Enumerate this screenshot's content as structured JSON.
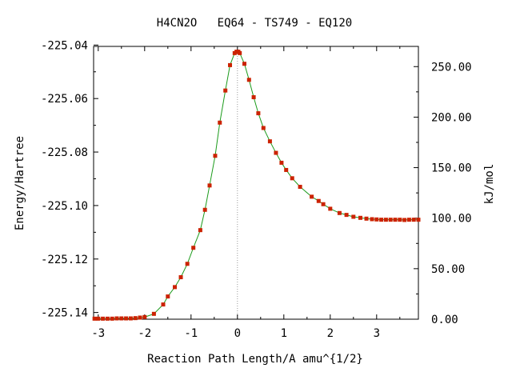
{
  "chart_data": {
    "type": "line",
    "title": "H4CN2O   EQ64 - TS749 - EQ120",
    "xlabel": "Reaction Path Length/A amu^{1/2}",
    "ylabel": "Energy/Hartree",
    "ylabel_right": "kJ/mol",
    "xlim": [
      -3.1,
      3.9
    ],
    "ylim": [
      -225.1425,
      -225.0405
    ],
    "ylim_right": [
      0,
      270
    ],
    "x_ticks": [
      -3,
      -2,
      -1,
      0,
      1,
      2,
      3
    ],
    "x_tick_labels": [
      "-3",
      "-2",
      "-1",
      "0",
      "1",
      "2",
      "3"
    ],
    "y_ticks": [
      -225.14,
      -225.12,
      -225.1,
      -225.08,
      -225.06,
      -225.04
    ],
    "y_tick_labels": [
      "-225.14",
      "-225.12",
      "-225.10",
      "-225.08",
      "-225.06",
      "-225.04"
    ],
    "y_right_ticks": [
      0,
      50,
      100,
      150,
      200,
      250
    ],
    "y_right_tick_labels": [
      "0.00",
      "50.00",
      "100.00",
      "150.00",
      "200.00",
      "250.00"
    ],
    "ts_marker_x": 0.0,
    "grid": false,
    "colors": {
      "line": "#1a9a1a",
      "marker": "#cc2200",
      "axis": "#000000",
      "ts_line": "#999999"
    },
    "series": [
      {
        "x": [
          -3.08,
          -3.0,
          -2.9,
          -2.8,
          -2.7,
          -2.6,
          -2.5,
          -2.4,
          -2.3,
          -2.2,
          -2.1,
          -2.0,
          -1.8,
          -1.6,
          -1.5,
          -1.35,
          -1.22,
          -1.08,
          -0.95,
          -0.8,
          -0.7,
          -0.6,
          -0.48,
          -0.38,
          -0.26,
          -0.16,
          -0.06,
          -0.02,
          0.0,
          0.02,
          0.05,
          0.15,
          0.25,
          0.35,
          0.45,
          0.56,
          0.7,
          0.83,
          0.95,
          1.05,
          1.18,
          1.35,
          1.6,
          1.75,
          1.85,
          2.0,
          2.2,
          2.35,
          2.5,
          2.65,
          2.78,
          2.9,
          3.0,
          3.1,
          3.2,
          3.3,
          3.4,
          3.5,
          3.6,
          3.7,
          3.8,
          3.9
        ],
        "y": [
          -225.1423,
          -225.1423,
          -225.1423,
          -225.1423,
          -225.1423,
          -225.1422,
          -225.1422,
          -225.1422,
          -225.1422,
          -225.1421,
          -225.1419,
          -225.1417,
          -225.1405,
          -225.137,
          -225.134,
          -225.1305,
          -225.1268,
          -225.1218,
          -225.1158,
          -225.1092,
          -225.1016,
          -225.0925,
          -225.0814,
          -225.069,
          -225.057,
          -225.0475,
          -225.043,
          -225.0425,
          -225.0425,
          -225.0425,
          -225.043,
          -225.047,
          -225.053,
          -225.0595,
          -225.0655,
          -225.071,
          -225.076,
          -225.0803,
          -225.084,
          -225.0867,
          -225.0898,
          -225.093,
          -225.0967,
          -225.0983,
          -225.0995,
          -225.1012,
          -225.1028,
          -225.1035,
          -225.1042,
          -225.1046,
          -225.1049,
          -225.1051,
          -225.1052,
          -225.1053,
          -225.1053,
          -225.1053,
          -225.1053,
          -225.1053,
          -225.1054,
          -225.1053,
          -225.1053,
          -225.1053
        ]
      }
    ]
  }
}
